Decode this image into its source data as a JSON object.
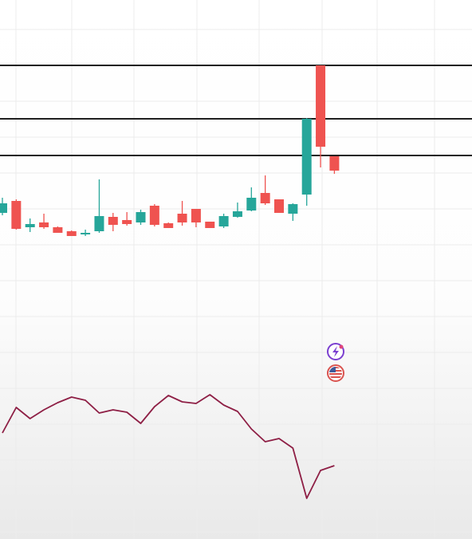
{
  "chart_data": [
    {
      "type": "candlestick",
      "open": [
        73,
        88,
        55,
        61,
        55,
        50,
        46,
        50,
        68,
        64,
        61,
        82,
        60,
        72,
        78,
        62,
        56,
        68,
        76,
        98,
        90,
        72,
        96,
        258,
        144
      ],
      "high": [
        92,
        90,
        66,
        72,
        56,
        51,
        52,
        115,
        73,
        74,
        77,
        84,
        61,
        88,
        78,
        62,
        72,
        86,
        105,
        120,
        90,
        85,
        192,
        258,
        144
      ],
      "low": [
        70,
        52,
        49,
        53,
        48,
        44,
        44,
        48,
        50,
        57,
        58,
        56,
        54,
        57,
        55,
        54,
        54,
        67,
        75,
        83,
        73,
        63,
        82,
        130,
        122
      ],
      "close": [
        85,
        53,
        59,
        55,
        48,
        44,
        48,
        69,
        58,
        59,
        74,
        58,
        54,
        61,
        61,
        54,
        69,
        75,
        92,
        85,
        73,
        84,
        191,
        156,
        126
      ],
      "up_color": "#26a69a",
      "down_color": "#ef5350",
      "levels": [
        258,
        191,
        145
      ],
      "level_color": "#1f1f1f",
      "ylim": [
        0,
        340
      ]
    },
    {
      "type": "line",
      "values": [
        133,
        165,
        151,
        162,
        171,
        178,
        174,
        158,
        162,
        159,
        145,
        166,
        180,
        172,
        170,
        181,
        168,
        160,
        138,
        122,
        126,
        114,
        51,
        86,
        92
      ],
      "color": "#8e1f45",
      "ylim": [
        0,
        276
      ]
    }
  ]
}
